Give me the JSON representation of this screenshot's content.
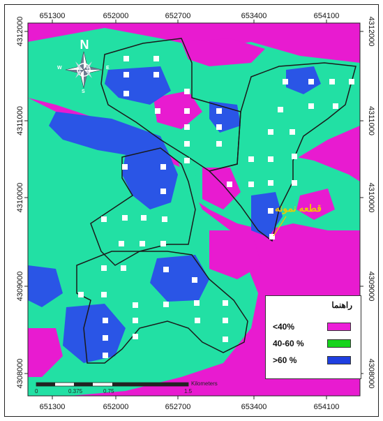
{
  "map": {
    "x_ticks": [
      "651300",
      "652000",
      "652700",
      "653400",
      "654100"
    ],
    "y_ticks": [
      "4312000",
      "4311000",
      "4310000",
      "4309000",
      "4308000"
    ],
    "north_label": "N",
    "compass_labels": {
      "w": "W",
      "e": "E",
      "s": "S"
    },
    "sample_label": "قطعه نمونه",
    "colors": {
      "low": "#e81bd0",
      "mid": "#22e0a4",
      "high": "#2a55e6",
      "boundary": "#1a1a1a",
      "plot": "#ffffff"
    }
  },
  "legend": {
    "title": "راهنما",
    "items": [
      {
        "label": "<40%",
        "color": "#ec1fd8"
      },
      {
        "label": "40-60 %",
        "color": "#16d41c"
      },
      {
        "label": ">60 %",
        "color": "#1f3fe0"
      }
    ]
  },
  "scale_bar": {
    "labels": [
      "0",
      "0.375",
      "0.75",
      "1.5"
    ],
    "unit": "Kilometers"
  }
}
